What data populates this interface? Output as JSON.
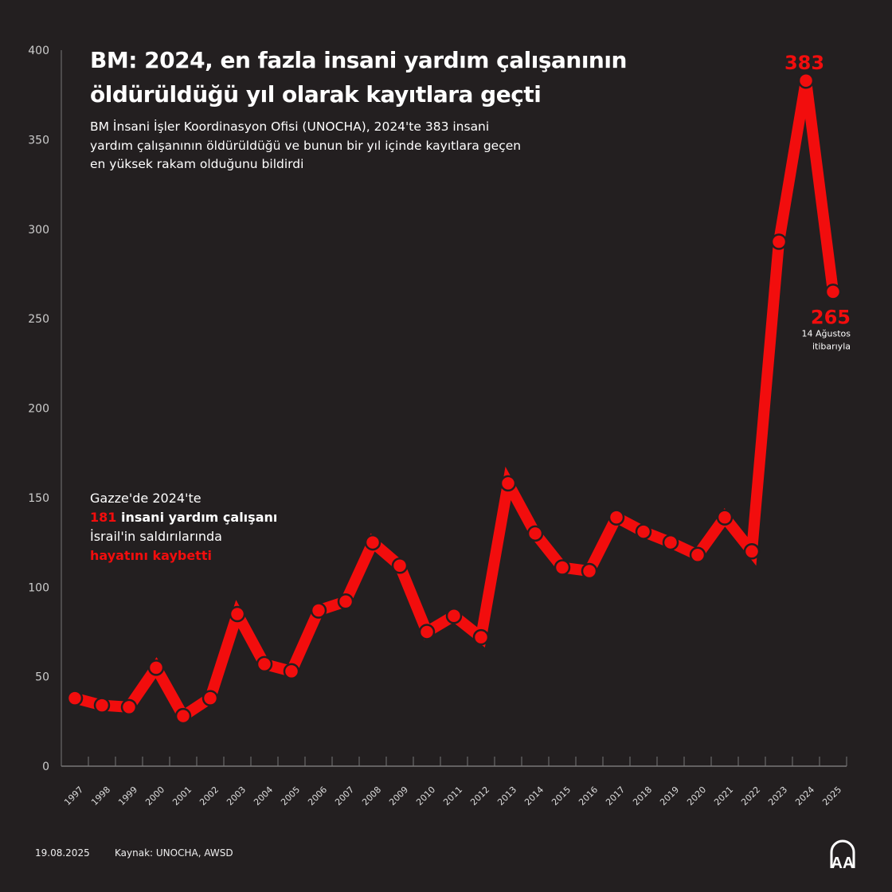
{
  "title_line1": "BM: 2024, en fazla insani yardım çalışanının",
  "title_line2": "öldürüldüğü yıl olarak kayıtlara geçti",
  "subtitle": "BM İnsani İşler Koordinasyon Ofisi (UNOCHA), 2024'te 383 insani yardım çalışanının öldürüldüğü ve bunun bir yıl içinde kayıtlara geçen en yüksek rakam olduğunu bildirdi",
  "note": {
    "line1": "Gazze'de 2024'te",
    "number": "181",
    "line2_rest": " insani yardım çalışanı",
    "line3": "İsrail'in saldırılarında",
    "line4": "hayatını kaybetti"
  },
  "footer": {
    "date": "19.08.2025",
    "source": "Kaynak: UNOCHA, AWSD"
  },
  "logo_text": "AA",
  "colors": {
    "background": "#231f20",
    "line": "#f20d0d",
    "text": "#ffffff"
  },
  "chart_data": {
    "type": "line",
    "x": [
      "1997",
      "1998",
      "1999",
      "2000",
      "2001",
      "2002",
      "2003",
      "2004",
      "2005",
      "2006",
      "2007",
      "2008",
      "2009",
      "2010",
      "2011",
      "2012",
      "2013",
      "2014",
      "2015",
      "2016",
      "2017",
      "2018",
      "2019",
      "2020",
      "2021",
      "2022",
      "2023",
      "2024",
      "2025"
    ],
    "values": [
      38,
      34,
      33,
      55,
      28,
      38,
      85,
      57,
      53,
      87,
      92,
      125,
      112,
      75,
      84,
      72,
      158,
      130,
      111,
      109,
      139,
      131,
      125,
      118,
      139,
      120,
      293,
      383,
      265
    ],
    "ylim": [
      0,
      400
    ],
    "yticks": [
      "0",
      "50",
      "100",
      "150",
      "200",
      "250",
      "300",
      "350",
      "400"
    ],
    "grid": false,
    "annotations": [
      {
        "year": "2024",
        "label": "383"
      },
      {
        "year": "2025",
        "label": "265",
        "sublabel1": "14 Ağustos",
        "sublabel2": "itibarıyla"
      }
    ]
  }
}
